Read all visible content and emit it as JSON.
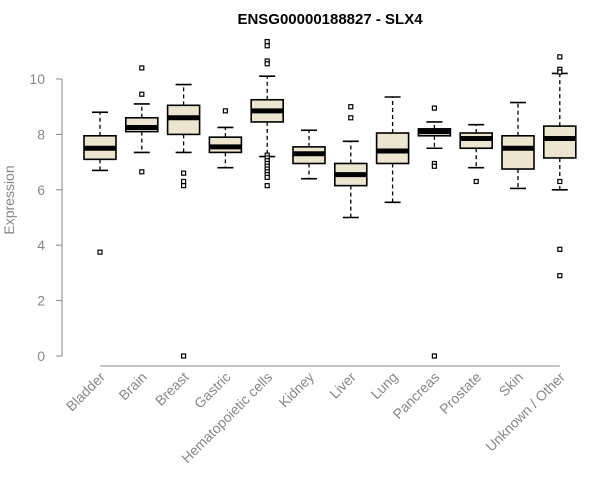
{
  "chart_data": {
    "type": "box",
    "title": "ENSG00000188827 - SLX4",
    "ylabel": "Expression",
    "xlabel": "",
    "ylim": [
      0,
      11.5
    ],
    "yticks": [
      0,
      2,
      4,
      6,
      8,
      10
    ],
    "grid": false,
    "legend": "none",
    "colors": {
      "box_fill": "#ece6d0",
      "box_stroke": "#000000",
      "axis": "#888888"
    },
    "categories": [
      "Bladder",
      "Brain",
      "Breast",
      "Gastric",
      "Hematopoietic cells",
      "Kidney",
      "Liver",
      "Lung",
      "Pancreas",
      "Prostate",
      "Skin",
      "Unknown / Other"
    ],
    "boxes": [
      {
        "category": "Bladder",
        "whisker_low": 6.7,
        "q1": 7.1,
        "median": 7.5,
        "q3": 7.95,
        "whisker_high": 8.8,
        "outliers": [
          3.75
        ]
      },
      {
        "category": "Brain",
        "whisker_low": 7.35,
        "q1": 8.1,
        "median": 8.25,
        "q3": 8.6,
        "whisker_high": 9.1,
        "outliers": [
          10.4,
          9.45,
          6.65
        ]
      },
      {
        "category": "Breast",
        "whisker_low": 7.35,
        "q1": 8.0,
        "median": 8.6,
        "q3": 9.05,
        "whisker_high": 9.8,
        "outliers": [
          6.6,
          6.3,
          6.15,
          0.0
        ]
      },
      {
        "category": "Gastric",
        "whisker_low": 6.8,
        "q1": 7.35,
        "median": 7.55,
        "q3": 7.9,
        "whisker_high": 8.25,
        "outliers": [
          8.85
        ]
      },
      {
        "category": "Hematopoietic cells",
        "whisker_low": 7.2,
        "q1": 8.45,
        "median": 8.85,
        "q3": 9.25,
        "whisker_high": 10.1,
        "outliers": [
          11.35,
          11.2,
          10.65,
          10.55,
          7.25,
          7.15,
          7.05,
          6.95,
          6.85,
          6.75,
          6.65,
          6.55,
          6.45,
          6.15
        ]
      },
      {
        "category": "Kidney",
        "whisker_low": 6.4,
        "q1": 6.95,
        "median": 7.3,
        "q3": 7.55,
        "whisker_high": 8.15,
        "outliers": []
      },
      {
        "category": "Liver",
        "whisker_low": 5.0,
        "q1": 6.15,
        "median": 6.55,
        "q3": 6.95,
        "whisker_high": 7.75,
        "outliers": [
          9.0,
          8.6
        ]
      },
      {
        "category": "Lung",
        "whisker_low": 5.55,
        "q1": 6.95,
        "median": 7.4,
        "q3": 8.05,
        "whisker_high": 9.35,
        "outliers": []
      },
      {
        "category": "Pancreas",
        "whisker_low": 7.5,
        "q1": 7.95,
        "median": 8.1,
        "q3": 8.2,
        "whisker_high": 8.45,
        "outliers": [
          8.95,
          6.95,
          6.85,
          0.0
        ]
      },
      {
        "category": "Prostate",
        "whisker_low": 6.8,
        "q1": 7.5,
        "median": 7.85,
        "q3": 8.05,
        "whisker_high": 8.35,
        "outliers": [
          6.3
        ]
      },
      {
        "category": "Skin",
        "whisker_low": 6.05,
        "q1": 6.75,
        "median": 7.5,
        "q3": 7.95,
        "whisker_high": 9.15,
        "outliers": []
      },
      {
        "category": "Unknown / Other",
        "whisker_low": 6.0,
        "q1": 7.15,
        "median": 7.85,
        "q3": 8.3,
        "whisker_high": 10.2,
        "outliers": [
          10.8,
          10.35,
          10.25,
          6.3,
          3.85,
          2.9
        ]
      }
    ]
  }
}
